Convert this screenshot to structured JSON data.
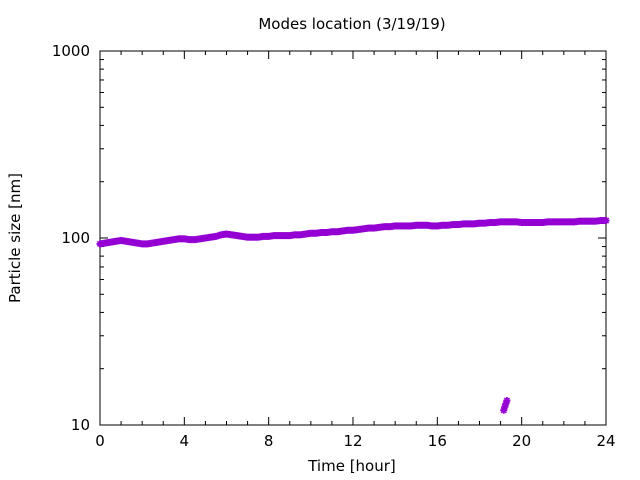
{
  "chart_data": {
    "type": "scatter",
    "title": "Modes location (3/19/19)",
    "xlabel": "Time [hour]",
    "ylabel": "Particle size [nm]",
    "xlim": [
      0,
      24
    ],
    "ylim": [
      10,
      1000
    ],
    "yscale": "log",
    "xticks": [
      0,
      4,
      8,
      12,
      16,
      20,
      24
    ],
    "xtick_labels": [
      "0",
      "4",
      "8",
      "12",
      "16",
      "20",
      "24"
    ],
    "yticks": [
      10,
      100,
      1000
    ],
    "ytick_labels": [
      "10",
      "100",
      "1000"
    ],
    "grid": false,
    "legend": "none",
    "marker_color": "#9400d3",
    "series": [
      {
        "x": [
          0.0,
          0.25,
          0.5,
          0.75,
          1.0,
          1.25,
          1.5,
          1.75,
          2.0,
          2.25,
          2.5,
          2.75,
          3.0,
          3.25,
          3.5,
          3.75,
          4.0,
          4.25,
          4.5,
          4.75,
          5.0,
          5.25,
          5.5,
          5.75,
          6.0,
          6.25,
          6.5,
          6.75,
          7.0,
          7.25,
          7.5,
          7.75,
          8.0,
          8.25,
          8.5,
          8.75,
          9.0,
          9.25,
          9.5,
          9.75,
          10.0,
          10.25,
          10.5,
          10.75,
          11.0,
          11.25,
          11.5,
          11.75,
          12.0,
          12.25,
          12.5,
          12.75,
          13.0,
          13.25,
          13.5,
          13.75,
          14.0,
          14.25,
          14.5,
          14.75,
          15.0,
          15.25,
          15.5,
          15.75,
          16.0,
          16.25,
          16.5,
          16.75,
          17.0,
          17.25,
          17.5,
          17.75,
          18.0,
          18.25,
          18.5,
          18.75,
          19.0,
          19.25,
          19.5,
          19.75,
          20.0,
          20.25,
          20.5,
          20.75,
          21.0,
          21.25,
          21.5,
          21.75,
          22.0,
          22.25,
          22.5,
          22.75,
          23.0,
          23.25,
          23.5,
          23.75,
          24.0
        ],
        "y": [
          93,
          94,
          95,
          96,
          97,
          96,
          95,
          94,
          93,
          93,
          94,
          95,
          96,
          97,
          98,
          99,
          99,
          98,
          98,
          99,
          100,
          101,
          102,
          104,
          105,
          104,
          103,
          102,
          101,
          101,
          101,
          102,
          102,
          103,
          103,
          103,
          103,
          104,
          104,
          105,
          106,
          106,
          107,
          107,
          108,
          108,
          109,
          110,
          110,
          111,
          112,
          113,
          113,
          114,
          115,
          115,
          116,
          116,
          116,
          116,
          117,
          117,
          117,
          116,
          116,
          117,
          117,
          118,
          118,
          119,
          119,
          119,
          120,
          120,
          121,
          121,
          122,
          122,
          122,
          122,
          121,
          121,
          121,
          121,
          121,
          122,
          122,
          122,
          122,
          122,
          122,
          123,
          123,
          123,
          123,
          124,
          124
        ]
      },
      {
        "x": [
          19.15,
          19.2,
          19.25,
          19.3
        ],
        "y": [
          12,
          12.5,
          13,
          13.5
        ]
      }
    ]
  }
}
